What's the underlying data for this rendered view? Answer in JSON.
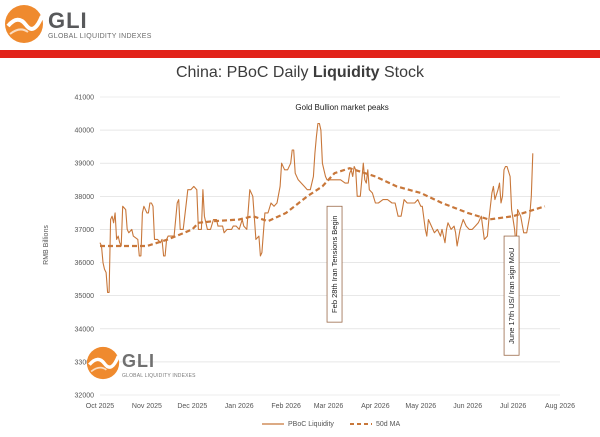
{
  "header": {
    "brand": "GLI",
    "tagline": "GLOBAL LIQUIDITY INDEXES",
    "accent_color": "#e2231a",
    "logo_icon": "gli-globe-logo-icon"
  },
  "watermark": {
    "brand": "GLI",
    "tagline": "GLOBAL LIQUIDITY INDEXES",
    "logo_icon": "gli-globe-logo-icon"
  },
  "title": {
    "prefix": "China: PBoC Daily ",
    "bold": "Liquidity",
    "suffix": " Stock"
  },
  "chart_data": {
    "type": "line",
    "ylabel": "RMB Billions",
    "ylim": [
      32000,
      41000
    ],
    "yticks": [
      "32000",
      "33000",
      "34000",
      "35000",
      "36000",
      "37000",
      "38000",
      "39000",
      "40000",
      "41000"
    ],
    "xlim": [
      "2025-10-01",
      "2026-08-01"
    ],
    "xticks": [
      "Oct 2025",
      "Nov 2025",
      "Dec 2025",
      "Jan 2026",
      "Feb 2026",
      "Mar 2026",
      "Apr 2026",
      "May 2026",
      "Jun 2026",
      "Jul 2026",
      "Aug 2026"
    ],
    "grid": "horizontal",
    "legend_position": "bottom",
    "series": [
      {
        "name": "PBoC Liquidity",
        "color": "#c8773a",
        "style": "solid",
        "points": [
          [
            "2025-10-01",
            36600
          ],
          [
            "2025-10-02",
            36500
          ],
          [
            "2025-10-03",
            36000
          ],
          [
            "2025-10-04",
            35800
          ],
          [
            "2025-10-05",
            35700
          ],
          [
            "2025-10-06",
            35100
          ],
          [
            "2025-10-07",
            35100
          ],
          [
            "2025-10-08",
            37300
          ],
          [
            "2025-10-09",
            37400
          ],
          [
            "2025-10-10",
            37200
          ],
          [
            "2025-10-11",
            37500
          ],
          [
            "2025-10-12",
            36700
          ],
          [
            "2025-10-13",
            36800
          ],
          [
            "2025-10-14",
            36600
          ],
          [
            "2025-10-15",
            36500
          ],
          [
            "2025-10-16",
            37700
          ],
          [
            "2025-10-18",
            37600
          ],
          [
            "2025-10-19",
            37000
          ],
          [
            "2025-10-20",
            36900
          ],
          [
            "2025-10-22",
            37000
          ],
          [
            "2025-10-23",
            36800
          ],
          [
            "2025-10-26",
            36700
          ],
          [
            "2025-10-27",
            36200
          ],
          [
            "2025-10-28",
            36200
          ],
          [
            "2025-10-29",
            37500
          ],
          [
            "2025-10-30",
            37700
          ],
          [
            "2025-11-01",
            37500
          ],
          [
            "2025-11-02",
            37500
          ],
          [
            "2025-11-03",
            37800
          ],
          [
            "2025-11-04",
            37800
          ],
          [
            "2025-11-05",
            37700
          ],
          [
            "2025-11-06",
            36700
          ],
          [
            "2025-11-08",
            36700
          ],
          [
            "2025-11-10",
            36600
          ],
          [
            "2025-11-11",
            36700
          ],
          [
            "2025-11-12",
            36200
          ],
          [
            "2025-11-13",
            36200
          ],
          [
            "2025-11-14",
            36700
          ],
          [
            "2025-11-15",
            36800
          ],
          [
            "2025-11-17",
            36800
          ],
          [
            "2025-11-19",
            36800
          ],
          [
            "2025-11-21",
            37800
          ],
          [
            "2025-11-22",
            37900
          ],
          [
            "2025-11-23",
            37000
          ],
          [
            "2025-11-25",
            37000
          ],
          [
            "2025-11-27",
            37800
          ],
          [
            "2025-11-28",
            38200
          ],
          [
            "2025-11-30",
            38200
          ],
          [
            "2025-12-02",
            38300
          ],
          [
            "2025-12-04",
            38200
          ],
          [
            "2025-12-05",
            37000
          ],
          [
            "2025-12-07",
            37000
          ],
          [
            "2025-12-08",
            38200
          ],
          [
            "2025-12-09",
            37400
          ],
          [
            "2025-12-11",
            37000
          ],
          [
            "2025-12-13",
            37000
          ],
          [
            "2025-12-15",
            37300
          ],
          [
            "2025-12-17",
            37300
          ],
          [
            "2025-12-18",
            37100
          ],
          [
            "2025-12-21",
            37100
          ],
          [
            "2025-12-22",
            36900
          ],
          [
            "2025-12-24",
            37000
          ],
          [
            "2025-12-27",
            37000
          ],
          [
            "2025-12-28",
            37100
          ],
          [
            "2025-12-30",
            37100
          ],
          [
            "2026-01-01",
            37000
          ],
          [
            "2026-01-03",
            37300
          ],
          [
            "2026-01-04",
            37100
          ],
          [
            "2026-01-06",
            37000
          ],
          [
            "2026-01-08",
            38200
          ],
          [
            "2026-01-10",
            38000
          ],
          [
            "2026-01-12",
            36700
          ],
          [
            "2026-01-14",
            36800
          ],
          [
            "2026-01-15",
            36200
          ],
          [
            "2026-01-16",
            36300
          ],
          [
            "2026-01-18",
            37500
          ],
          [
            "2026-01-20",
            37500
          ],
          [
            "2026-01-22",
            37800
          ],
          [
            "2026-01-24",
            37700
          ],
          [
            "2026-01-26",
            37800
          ],
          [
            "2026-01-28",
            38300
          ],
          [
            "2026-01-29",
            39000
          ],
          [
            "2026-01-31",
            38800
          ],
          [
            "2026-02-02",
            38800
          ],
          [
            "2026-02-04",
            39000
          ],
          [
            "2026-02-05",
            39400
          ],
          [
            "2026-02-06",
            39400
          ],
          [
            "2026-02-07",
            38700
          ],
          [
            "2026-02-09",
            38500
          ],
          [
            "2026-02-11",
            38400
          ],
          [
            "2026-02-13",
            38300
          ],
          [
            "2026-02-15",
            38200
          ],
          [
            "2026-02-17",
            38200
          ],
          [
            "2026-02-19",
            38600
          ],
          [
            "2026-02-20",
            39300
          ],
          [
            "2026-02-21",
            39800
          ],
          [
            "2026-02-22",
            40200
          ],
          [
            "2026-02-23",
            40200
          ],
          [
            "2026-02-24",
            40000
          ],
          [
            "2026-02-25",
            39000
          ],
          [
            "2026-02-26",
            38800
          ],
          [
            "2026-02-27",
            38600
          ],
          [
            "2026-02-28",
            38500
          ],
          [
            "2026-03-03",
            38500
          ],
          [
            "2026-03-06",
            38500
          ],
          [
            "2026-03-09",
            38500
          ],
          [
            "2026-03-12",
            38400
          ],
          [
            "2026-03-14",
            38400
          ],
          [
            "2026-03-15",
            38700
          ],
          [
            "2026-03-16",
            38800
          ],
          [
            "2026-03-17",
            38600
          ],
          [
            "2026-03-18",
            38900
          ],
          [
            "2026-03-19",
            38800
          ],
          [
            "2026-03-20",
            38000
          ],
          [
            "2026-03-22",
            38000
          ],
          [
            "2026-03-24",
            39000
          ],
          [
            "2026-03-25",
            38500
          ],
          [
            "2026-03-26",
            38400
          ],
          [
            "2026-03-27",
            38800
          ],
          [
            "2026-03-28",
            38200
          ],
          [
            "2026-03-30",
            38100
          ],
          [
            "2026-04-01",
            37800
          ],
          [
            "2026-04-03",
            37800
          ],
          [
            "2026-04-06",
            37900
          ],
          [
            "2026-04-09",
            37900
          ],
          [
            "2026-04-12",
            37800
          ],
          [
            "2026-04-14",
            37800
          ],
          [
            "2026-04-16",
            37400
          ],
          [
            "2026-04-18",
            37400
          ],
          [
            "2026-04-20",
            37900
          ],
          [
            "2026-04-22",
            37800
          ],
          [
            "2026-04-24",
            37800
          ],
          [
            "2026-04-27",
            37800
          ],
          [
            "2026-04-29",
            37900
          ],
          [
            "2026-05-01",
            37700
          ],
          [
            "2026-05-02",
            37700
          ],
          [
            "2026-05-04",
            37000
          ],
          [
            "2026-05-05",
            36800
          ],
          [
            "2026-05-06",
            37300
          ],
          [
            "2026-05-08",
            37100
          ],
          [
            "2026-05-10",
            36900
          ],
          [
            "2026-05-12",
            37000
          ],
          [
            "2026-05-14",
            36800
          ],
          [
            "2026-05-15",
            37000
          ],
          [
            "2026-05-17",
            36600
          ],
          [
            "2026-05-18",
            37000
          ],
          [
            "2026-05-19",
            37200
          ],
          [
            "2026-05-21",
            37000
          ],
          [
            "2026-05-23",
            37100
          ],
          [
            "2026-05-24",
            36900
          ],
          [
            "2026-05-25",
            36500
          ],
          [
            "2026-05-27",
            37000
          ],
          [
            "2026-05-29",
            37300
          ],
          [
            "2026-05-31",
            37100
          ],
          [
            "2026-06-02",
            37000
          ],
          [
            "2026-06-04",
            37000
          ],
          [
            "2026-06-06",
            37100
          ],
          [
            "2026-06-08",
            37200
          ],
          [
            "2026-06-10",
            37400
          ],
          [
            "2026-06-12",
            36700
          ],
          [
            "2026-06-14",
            36800
          ],
          [
            "2026-06-15",
            37300
          ],
          [
            "2026-06-17",
            38100
          ],
          [
            "2026-06-18",
            38300
          ],
          [
            "2026-06-19",
            37900
          ],
          [
            "2026-06-21",
            38200
          ],
          [
            "2026-06-22",
            38400
          ],
          [
            "2026-06-23",
            37800
          ],
          [
            "2026-06-24",
            38000
          ],
          [
            "2026-06-25",
            38800
          ],
          [
            "2026-06-26",
            38900
          ],
          [
            "2026-06-27",
            38900
          ],
          [
            "2026-06-29",
            38600
          ],
          [
            "2026-06-30",
            37600
          ],
          [
            "2026-07-01",
            37300
          ],
          [
            "2026-07-02",
            37000
          ],
          [
            "2026-07-03",
            36500
          ],
          [
            "2026-07-04",
            37600
          ],
          [
            "2026-07-06",
            37400
          ],
          [
            "2026-07-08",
            36900
          ],
          [
            "2026-07-10",
            36900
          ],
          [
            "2026-07-12",
            37400
          ],
          [
            "2026-07-13",
            38000
          ],
          [
            "2026-07-14",
            39300
          ]
        ]
      },
      {
        "name": "50d MA",
        "color": "#c8773a",
        "style": "dashed",
        "points": [
          [
            "2025-10-01",
            36500
          ],
          [
            "2025-10-15",
            36500
          ],
          [
            "2025-11-01",
            36500
          ],
          [
            "2025-11-15",
            36700
          ],
          [
            "2025-12-01",
            37000
          ],
          [
            "2025-12-05",
            37200
          ],
          [
            "2025-12-15",
            37250
          ],
          [
            "2026-01-01",
            37300
          ],
          [
            "2026-01-10",
            37400
          ],
          [
            "2026-01-20",
            37250
          ],
          [
            "2026-02-01",
            37500
          ],
          [
            "2026-02-15",
            38000
          ],
          [
            "2026-02-25",
            38300
          ],
          [
            "2026-03-05",
            38700
          ],
          [
            "2026-03-15",
            38850
          ],
          [
            "2026-04-01",
            38600
          ],
          [
            "2026-04-15",
            38300
          ],
          [
            "2026-05-01",
            38100
          ],
          [
            "2026-05-15",
            37800
          ],
          [
            "2026-06-01",
            37500
          ],
          [
            "2026-06-15",
            37300
          ],
          [
            "2026-07-01",
            37400
          ],
          [
            "2026-07-15",
            37600
          ],
          [
            "2026-07-22",
            37700
          ]
        ]
      }
    ],
    "annotations": [
      {
        "text": "Gold Bullion market peaks",
        "style": "text",
        "date": "2026-03-10",
        "value": 40600
      },
      {
        "text": "Feb 28th Iran Tensions Begin",
        "style": "vertical-box",
        "date": "2026-03-05",
        "y_range": [
          34200,
          37700
        ]
      },
      {
        "text": "June 17th US/ Iran sign MoU",
        "style": "vertical-box",
        "date": "2026-06-30",
        "y_range": [
          33200,
          36800
        ]
      }
    ]
  }
}
